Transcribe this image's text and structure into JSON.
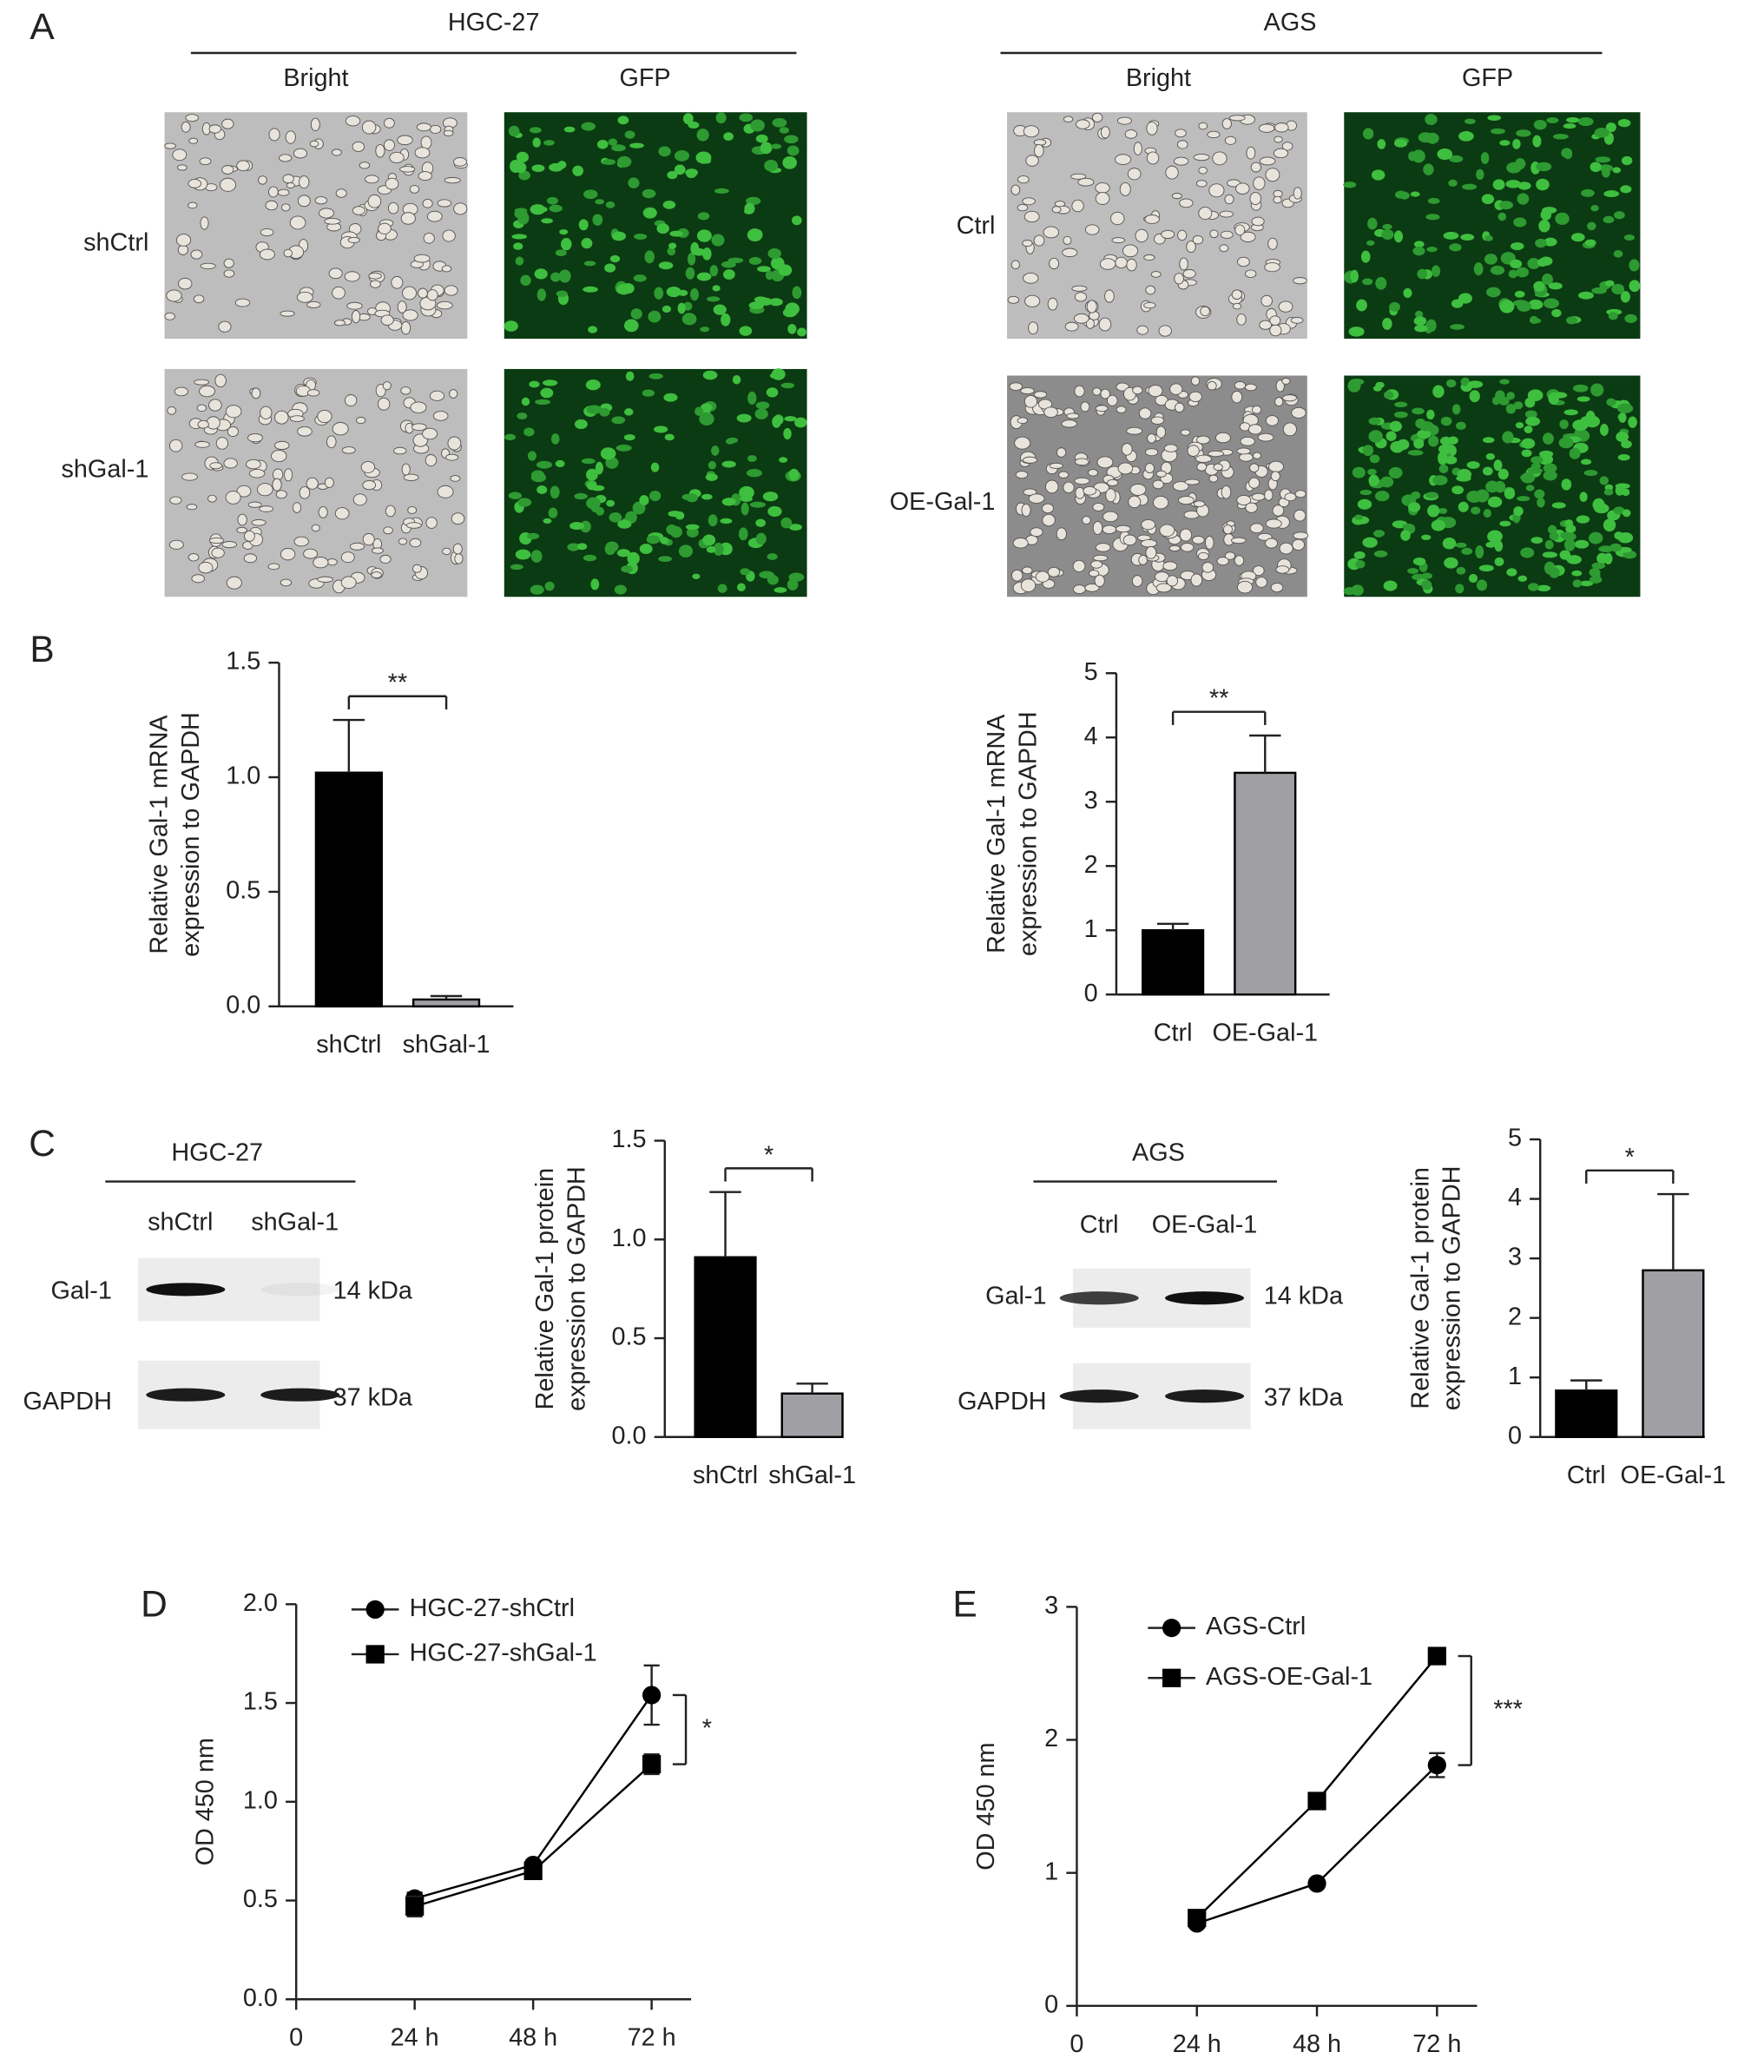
{
  "panel_labels": [
    "A",
    "B",
    "C",
    "D",
    "E"
  ],
  "panel_a": [
    {
      "cell_line": "HGC-27",
      "columns": [
        "Bright",
        "GFP"
      ],
      "rows": [
        "shCtrl",
        "shGal-1"
      ]
    },
    {
      "cell_line": "AGS",
      "columns": [
        "Bright",
        "GFP"
      ],
      "rows": [
        "Ctrl",
        "OE-Gal-1"
      ]
    }
  ],
  "panel_c_blots": [
    {
      "cell_line": "HGC-27",
      "lanes": [
        "shCtrl",
        "shGal-1"
      ],
      "proteins": [
        {
          "name": "Gal-1",
          "size": "14 kDa"
        },
        {
          "name": "GAPDH",
          "size": "37 kDa"
        }
      ]
    },
    {
      "cell_line": "AGS",
      "lanes": [
        "Ctrl",
        "OE-Gal-1"
      ],
      "proteins": [
        {
          "name": "Gal-1",
          "size": "14 kDa"
        },
        {
          "name": "GAPDH",
          "size": "37 kDa"
        }
      ]
    }
  ],
  "chart_data": [
    {
      "type": "bar",
      "ylabel": [
        "Relative Gal-1 mRNA",
        "expression to GAPDH"
      ],
      "categories": [
        "shCtrl",
        "shGal-1"
      ],
      "values": [
        1.02,
        0.03
      ],
      "errors": [
        0.23,
        0.015
      ],
      "colors": [
        "#000000",
        "#a0a0a4"
      ],
      "significance": "**",
      "ylim": [
        0,
        1.5
      ],
      "yticks": [
        {
          "value": 0,
          "label": "0.0"
        },
        0.5,
        {
          "value": 1,
          "label": "1.0"
        },
        1.5
      ]
    },
    {
      "type": "bar",
      "ylabel": [
        "Relative Gal-1 mRNA",
        "expression to GAPDH"
      ],
      "categories": [
        "Ctrl",
        "OE-Gal-1"
      ],
      "values": [
        1.0,
        3.45
      ],
      "errors": [
        0.1,
        0.58
      ],
      "colors": [
        "#000000",
        "#a0a0a4"
      ],
      "significance": "**",
      "ylim": [
        0,
        5
      ],
      "yticks": [
        0,
        1,
        2,
        3,
        4,
        5
      ]
    },
    {
      "type": "bar",
      "ylabel": [
        "Relative Gal-1 protein",
        "expression to GAPDH"
      ],
      "categories": [
        "shCtrl",
        "shGal-1"
      ],
      "values": [
        0.91,
        0.22
      ],
      "errors": [
        0.33,
        0.05
      ],
      "colors": [
        "#000000",
        "#a0a0a4"
      ],
      "significance": "*",
      "ylim": [
        0,
        1.5
      ],
      "yticks": [
        {
          "value": 0,
          "label": "0.0"
        },
        0.5,
        {
          "value": 1,
          "label": "1.0"
        },
        1.5
      ]
    },
    {
      "type": "bar",
      "ylabel": [
        "Relative Gal-1 protein",
        "expression to GAPDH"
      ],
      "categories": [
        "Ctrl",
        "OE-Gal-1"
      ],
      "values": [
        0.78,
        2.8
      ],
      "errors": [
        0.17,
        1.28
      ],
      "colors": [
        "#000000",
        "#a0a0a4"
      ],
      "significance": "*",
      "ylim": [
        0,
        5
      ],
      "yticks": [
        0,
        1,
        2,
        3,
        4,
        5
      ]
    },
    {
      "type": "line",
      "ylabel": "OD 450 nm",
      "x": [
        24,
        48,
        72
      ],
      "series": [
        {
          "name": "HGC-27-shCtrl",
          "color": "#000000",
          "marker": "circle",
          "values": [
            0.51,
            0.68,
            1.54
          ],
          "errors": [
            0.03,
            0.02,
            0.15
          ]
        },
        {
          "name": "HGC-27-shGal-1",
          "color": "#000000",
          "marker": "square",
          "values": [
            0.47,
            0.65,
            1.19
          ],
          "errors": [
            0.05,
            0.03,
            0.05
          ]
        }
      ],
      "significance": "*",
      "xlim": [
        0,
        80
      ],
      "xticks": [
        0,
        {
          "value": 24,
          "label": "24 h"
        },
        {
          "value": 48,
          "label": "48 h"
        },
        {
          "value": 72,
          "label": "72 h"
        }
      ],
      "ylim": [
        0,
        2
      ],
      "yticks": [
        {
          "value": 0,
          "label": "0.0"
        },
        0.5,
        {
          "value": 1,
          "label": "1.0"
        },
        1.5,
        {
          "value": 2,
          "label": "2.0"
        }
      ]
    },
    {
      "type": "line",
      "ylabel": "OD 450 nm",
      "x": [
        24,
        48,
        72
      ],
      "series": [
        {
          "name": "AGS-Ctrl",
          "color": "#000000",
          "marker": "circle",
          "values": [
            0.62,
            0.92,
            1.81
          ],
          "errors": [
            0.03,
            0.02,
            0.09
          ]
        },
        {
          "name": "AGS-OE-Gal-1",
          "color": "#000000",
          "marker": "square",
          "values": [
            0.66,
            1.54,
            2.63
          ],
          "errors": [
            0.03,
            0.02,
            0.06
          ]
        }
      ],
      "significance": "***",
      "xlim": [
        0,
        80
      ],
      "xticks": [
        0,
        {
          "value": 24,
          "label": "24 h"
        },
        {
          "value": 48,
          "label": "48 h"
        },
        {
          "value": 72,
          "label": "72 h"
        }
      ],
      "ylim": [
        0,
        3
      ],
      "yticks": [
        0,
        1,
        2,
        3
      ]
    }
  ]
}
